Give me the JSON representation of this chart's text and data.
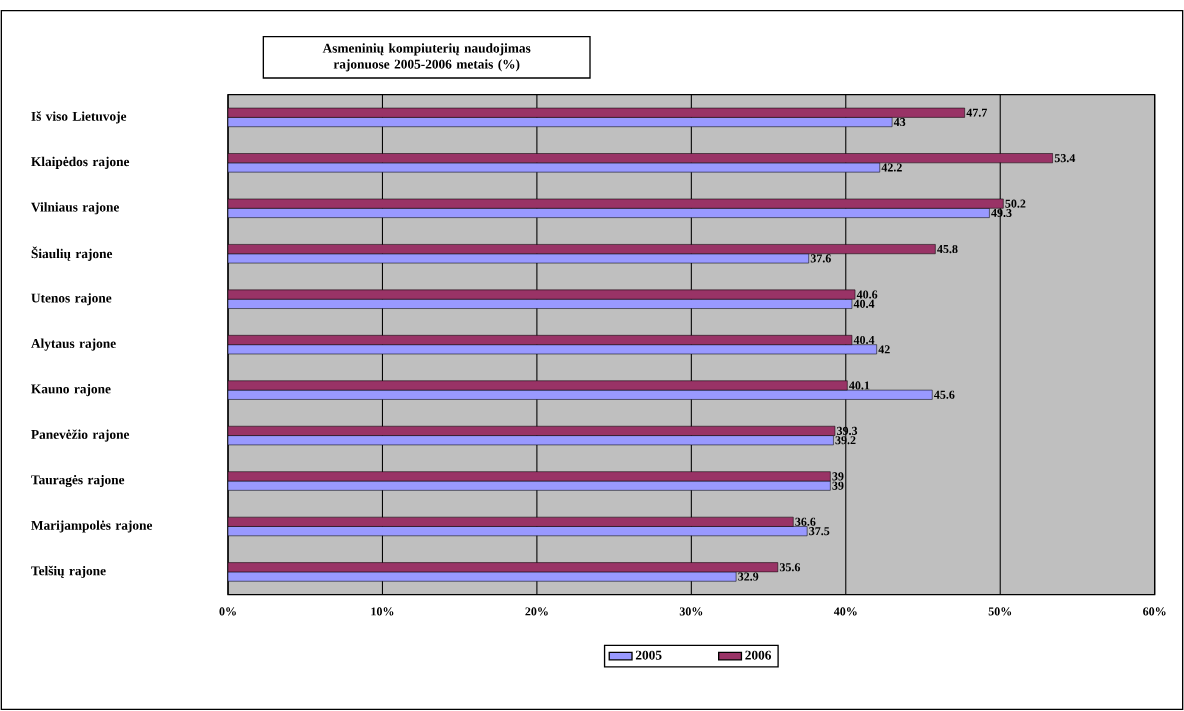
{
  "chart_data": {
    "type": "bar",
    "orientation": "horizontal",
    "title": "Asmeninių kompiuterių naudojimas rajonuose 2005-2006 metais (%)",
    "categories": [
      "Iš viso Lietuvoje",
      "Klaipėdos rajone",
      "Vilniaus rajone",
      "Šiaulių rajone",
      "Utenos rajone",
      "Alytaus rajone",
      "Kauno rajone",
      "Panevėžio rajone",
      "Tauragės rajone",
      "Marijampolės rajone",
      "Telšių rajone"
    ],
    "series": [
      {
        "name": "2005",
        "color": "#9999ff",
        "values": [
          43,
          42.2,
          49.3,
          37.6,
          40.4,
          42,
          45.6,
          39.2,
          39,
          37.5,
          32.9
        ]
      },
      {
        "name": "2006",
        "color": "#993366",
        "values": [
          47.7,
          53.4,
          50.2,
          45.8,
          40.6,
          40.4,
          40.1,
          39.3,
          39,
          36.6,
          35.6
        ]
      }
    ],
    "xlim": [
      0,
      60
    ],
    "xticks": [
      {
        "value": 0,
        "label": "0%"
      },
      {
        "value": 10,
        "label": "10%"
      },
      {
        "value": 20,
        "label": "20%"
      },
      {
        "value": 30,
        "label": "30%"
      },
      {
        "value": 40,
        "label": "40%"
      },
      {
        "value": 50,
        "label": "50%"
      },
      {
        "value": 60,
        "label": "60%"
      }
    ],
    "grid": "x",
    "legend": "bottom",
    "data_labels": true
  }
}
